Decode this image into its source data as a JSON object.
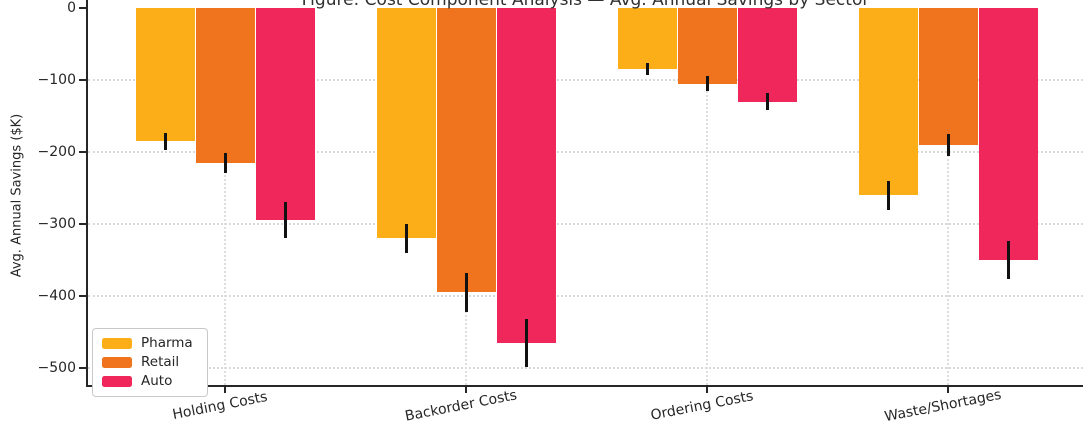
{
  "chart_data": {
    "type": "bar",
    "title": "Figure: Cost Component Analysis — Avg. Annual Savings by Sector",
    "ylabel": "Avg. Annual Savings ($K)",
    "xlabel": "",
    "categories": [
      "Holding Costs",
      "Backorder Costs",
      "Ordering Costs",
      "Waste/Shortages"
    ],
    "series": [
      {
        "name": "Pharma",
        "color": "#FBAE17",
        "values": [
          -185,
          -320,
          -85,
          -260
        ],
        "errors": [
          12,
          20,
          8,
          20
        ]
      },
      {
        "name": "Retail",
        "color": "#F0731E",
        "values": [
          -215,
          -395,
          -105,
          -190
        ],
        "errors": [
          14,
          27,
          10,
          15
        ]
      },
      {
        "name": "Auto",
        "color": "#F0275A",
        "values": [
          -295,
          -465,
          -130,
          -350
        ],
        "errors": [
          25,
          33,
          12,
          26
        ]
      }
    ],
    "y_ticks": [
      0,
      -100,
      -200,
      -300,
      -400,
      -500
    ],
    "ylim": [
      -524,
      0
    ],
    "grid": true,
    "grid_style": "dotted",
    "legend_position": "lower-left",
    "colors": {
      "axis": "#262626",
      "text": "#262626",
      "grid": "#d9d9d9",
      "error_bar": "#111111",
      "background": "#ffffff"
    }
  }
}
